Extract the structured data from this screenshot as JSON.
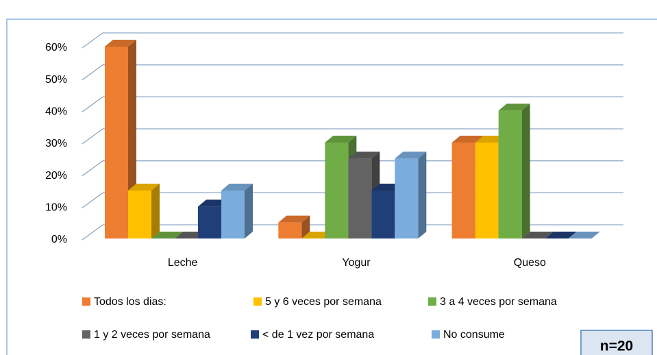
{
  "chart_data": {
    "type": "bar3d",
    "categories": [
      "Leche",
      "Yogur",
      "Queso"
    ],
    "series": [
      {
        "name": "Todos los dias:",
        "color": "#ED7D31",
        "values": [
          60,
          5,
          30
        ]
      },
      {
        "name": "5 y 6 veces por semana",
        "color": "#FFC000",
        "values": [
          15,
          0,
          30
        ]
      },
      {
        "name": "3 a 4 veces por semana",
        "color": "#70AD47",
        "values": [
          0,
          30,
          40
        ]
      },
      {
        "name": "1 y 2 veces por semana",
        "color": "#636363",
        "values": [
          0,
          25,
          0
        ]
      },
      {
        "name": "< de 1 vez por semana",
        "color": "#203F78",
        "values": [
          10,
          15,
          0
        ]
      },
      {
        "name": "No consume",
        "color": "#7AADDE",
        "values": [
          15,
          25,
          0
        ]
      }
    ],
    "ylim": [
      0,
      60
    ],
    "yticks": [
      {
        "value": 0,
        "label": "0%"
      },
      {
        "value": 10,
        "label": "10%"
      },
      {
        "value": 20,
        "label": "20%"
      },
      {
        "value": 30,
        "label": "30%"
      },
      {
        "value": 40,
        "label": "40%"
      },
      {
        "value": 50,
        "label": "50%"
      },
      {
        "value": 60,
        "label": "60%"
      }
    ],
    "grid": true,
    "annotation": "n=20"
  }
}
